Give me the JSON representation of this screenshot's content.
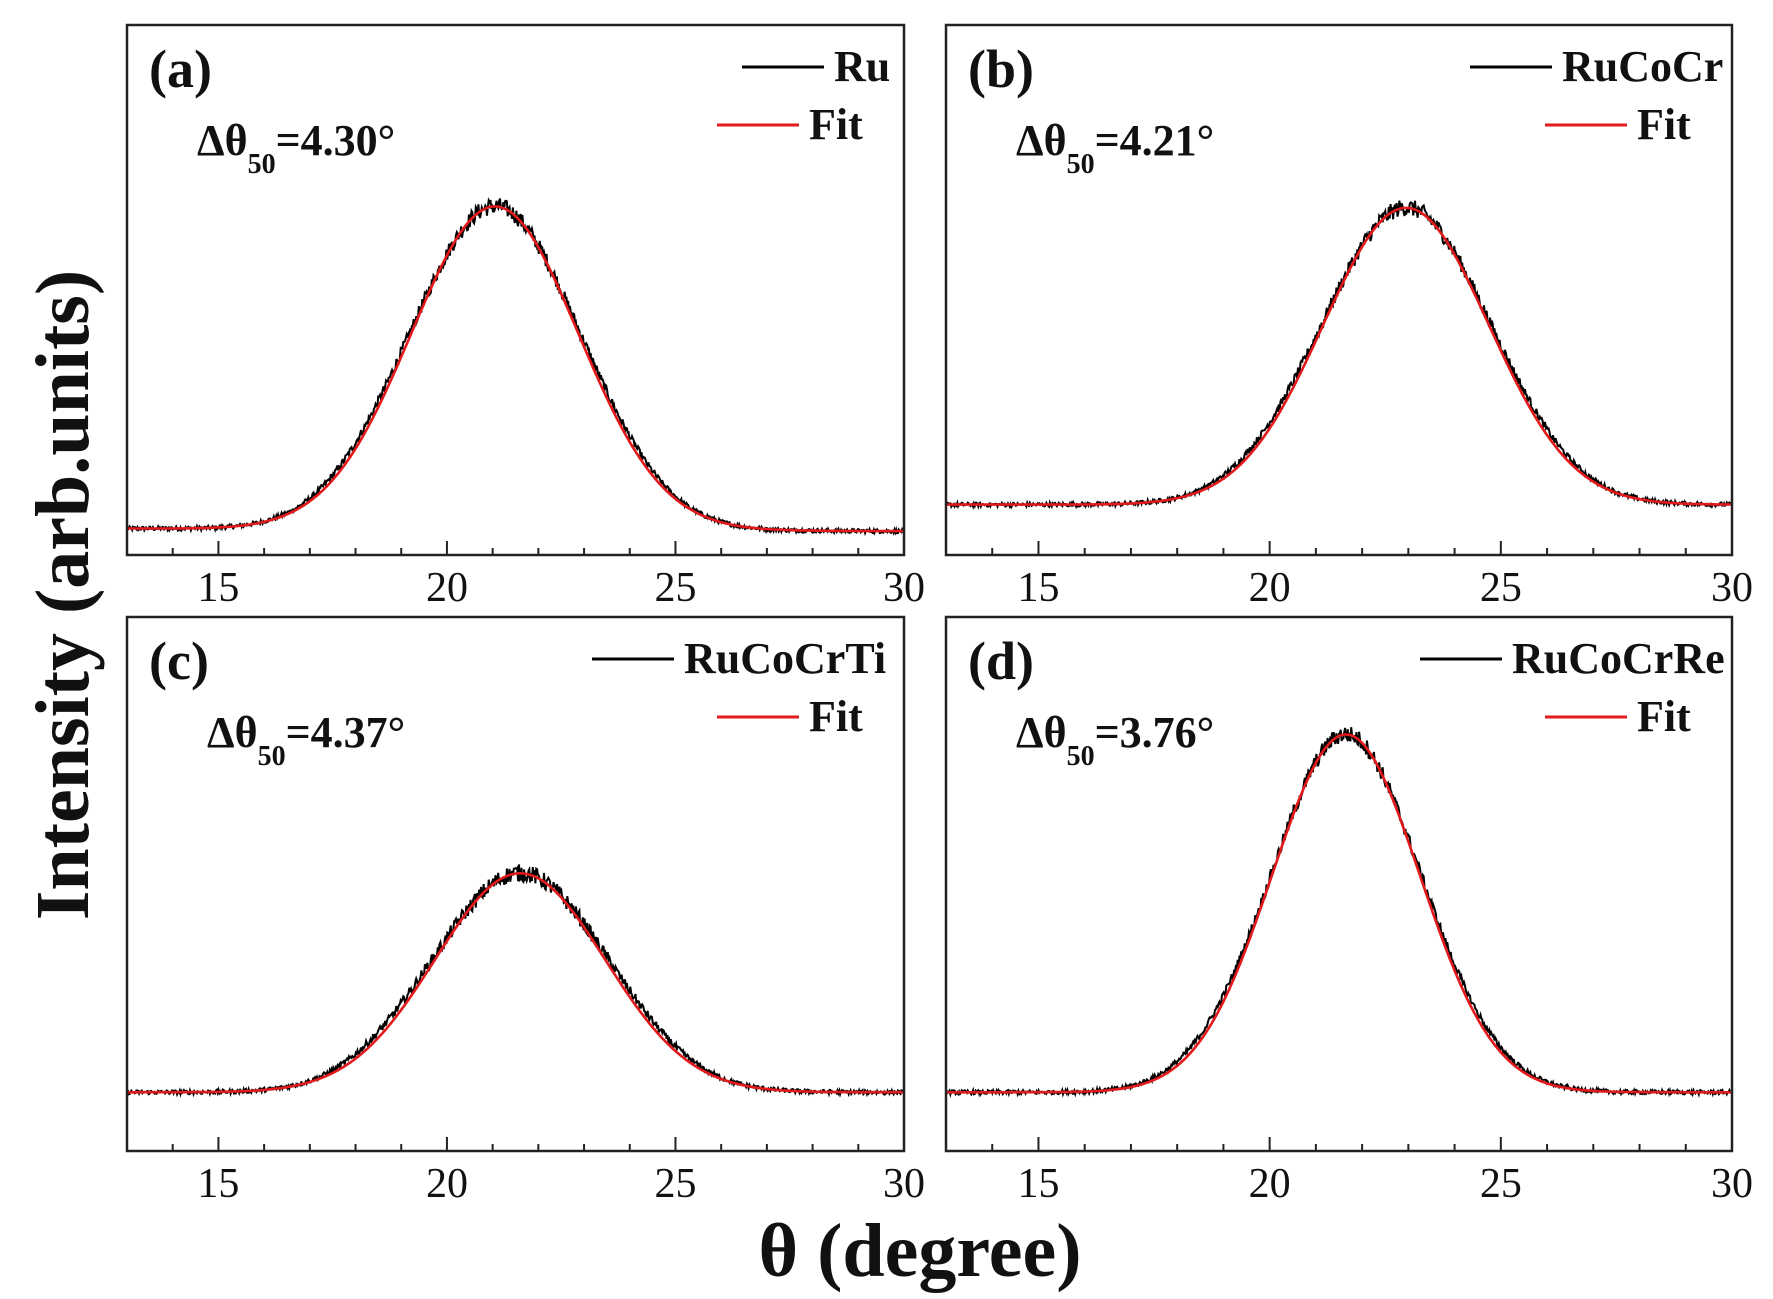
{
  "figure": {
    "ylabel": "Intensity (arb.units)",
    "xlabel": "θ (degree)"
  },
  "colors": {
    "data": "#000000",
    "fit": "#e31a1c",
    "frame": "#222222"
  },
  "chart_data": [
    {
      "type": "line",
      "panel": "(a)",
      "xlim": [
        13,
        30
      ],
      "xticks": [
        15,
        20,
        25,
        30
      ],
      "ylim": [
        0,
        1
      ],
      "legend_position": "top-right",
      "fwhm_label": {
        "prefix": "Δθ",
        "sub": "50",
        "value": "=4.30°"
      },
      "peak": {
        "center": 21.05,
        "sigma": 1.83,
        "amplitude": 0.61,
        "baseline_left": 0.05,
        "baseline_right": 0.045
      },
      "series": [
        {
          "name": "Ru",
          "color": "#000000",
          "role": "data"
        },
        {
          "name": "Fit",
          "color": "#e31a1c",
          "role": "fit"
        }
      ]
    },
    {
      "type": "line",
      "panel": "(b)",
      "xlim": [
        13,
        30
      ],
      "xticks": [
        15,
        20,
        25,
        30
      ],
      "ylim": [
        0,
        1
      ],
      "legend_position": "top-right",
      "fwhm_label": {
        "prefix": "Δθ",
        "sub": "50",
        "value": "=4.21°"
      },
      "peak": {
        "center": 22.95,
        "sigma": 1.79,
        "amplitude": 0.56,
        "baseline_left": 0.095,
        "baseline_right": 0.095
      },
      "series": [
        {
          "name": "RuCoCr",
          "color": "#000000",
          "role": "data"
        },
        {
          "name": "Fit",
          "color": "#e31a1c",
          "role": "fit"
        }
      ]
    },
    {
      "type": "line",
      "panel": "(c)",
      "xlim": [
        13,
        30
      ],
      "xticks": [
        15,
        20,
        25,
        30
      ],
      "ylim": [
        0,
        1
      ],
      "legend_position": "top-right",
      "fwhm_label": {
        "prefix": "Δθ",
        "sub": "50",
        "value": "=4.37°"
      },
      "peak": {
        "center": 21.6,
        "sigma": 1.86,
        "amplitude": 0.41,
        "baseline_left": 0.11,
        "baseline_right": 0.11
      },
      "series": [
        {
          "name": "RuCoCrTi",
          "color": "#000000",
          "role": "data"
        },
        {
          "name": "Fit",
          "color": "#e31a1c",
          "role": "fit"
        }
      ]
    },
    {
      "type": "line",
      "panel": "(d)",
      "xlim": [
        13,
        30
      ],
      "xticks": [
        15,
        20,
        25,
        30
      ],
      "ylim": [
        0,
        1
      ],
      "legend_position": "top-right",
      "fwhm_label": {
        "prefix": "Δθ",
        "sub": "50",
        "value": "=3.76°"
      },
      "peak": {
        "center": 21.65,
        "sigma": 1.6,
        "amplitude": 0.67,
        "baseline_left": 0.11,
        "baseline_right": 0.11
      },
      "series": [
        {
          "name": "RuCoCrRe",
          "color": "#000000",
          "role": "data"
        },
        {
          "name": "Fit",
          "color": "#e31a1c",
          "role": "fit"
        }
      ]
    }
  ]
}
